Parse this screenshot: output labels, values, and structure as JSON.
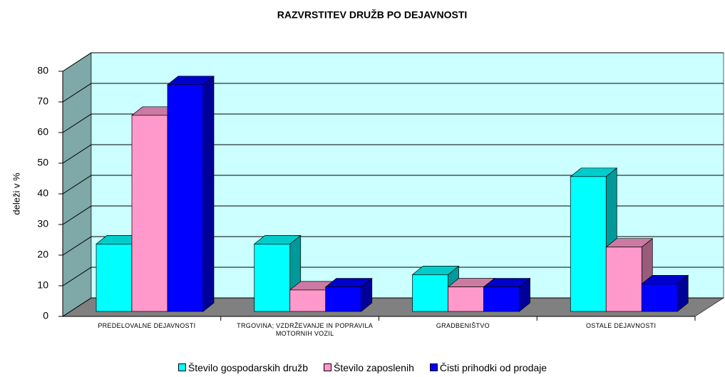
{
  "chart_data": {
    "type": "bar3d",
    "title": "RAZVRSTITEV  DRUŽB PO DEJAVNOSTI",
    "y_label": "deleži v %",
    "categories": [
      "PREDELOVALNE DEJAVNOSTI",
      "TRGOVINA; VZDRŽEVANJE IN POPRAVILA MOTORNIH VOZIL",
      "GRADBENIŠTVO",
      "OSTALE DEJAVNOSTI"
    ],
    "series": [
      {
        "name": "Število gospodarskih družb",
        "color": "#00ffff",
        "values": [
          22,
          22,
          12,
          44
        ]
      },
      {
        "name": "Število zaposlenih",
        "color": "#ff99cc",
        "values": [
          64,
          7,
          8,
          21
        ]
      },
      {
        "name": "Čisti prihodki od prodaje",
        "color": "#0000ff",
        "values": [
          74,
          8,
          8,
          9
        ]
      }
    ],
    "ylim": [
      0,
      80
    ],
    "yticks": [
      0,
      10,
      20,
      30,
      40,
      50,
      60,
      70,
      80
    ],
    "grid": true
  }
}
